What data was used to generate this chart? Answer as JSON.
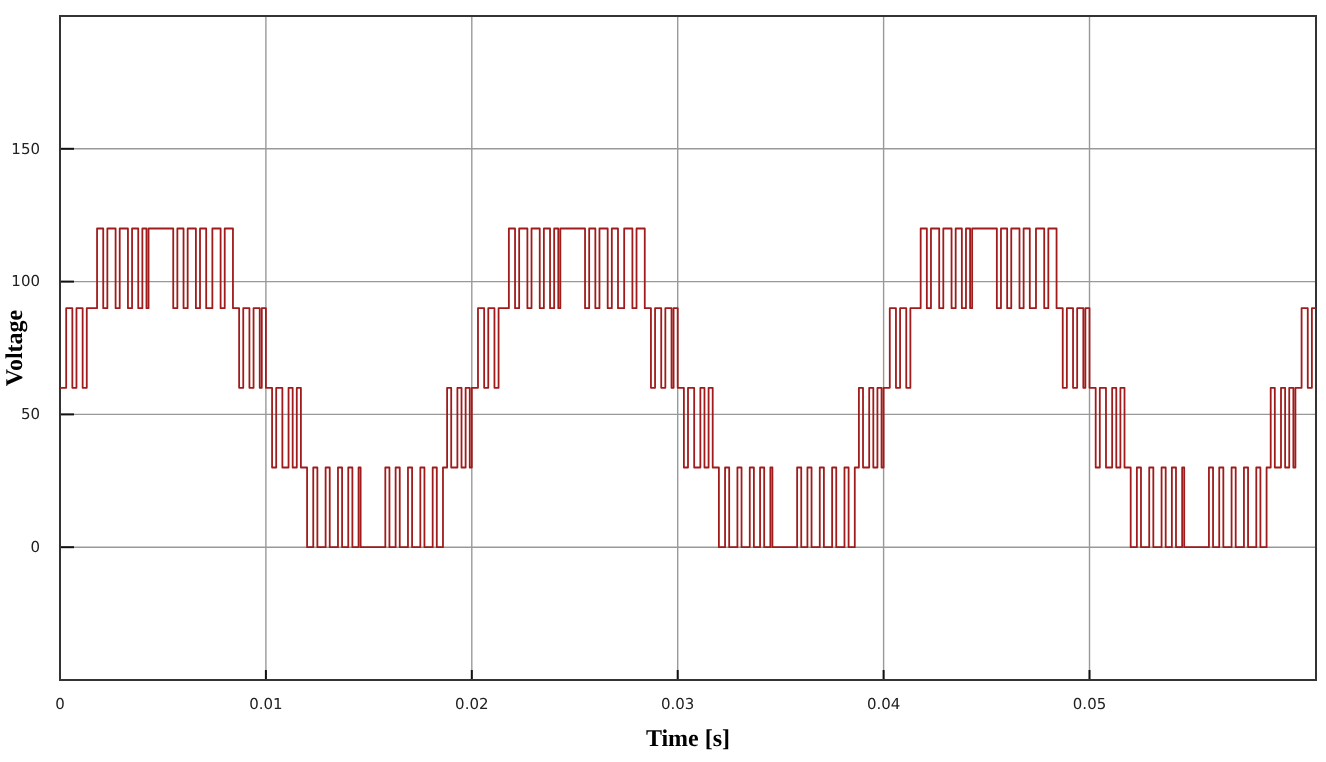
{
  "chart_data": {
    "type": "step",
    "xlabel": "Time [s]",
    "ylabel": "Voltage",
    "xlim": [
      0,
      0.061
    ],
    "xticks": [
      0,
      0.01,
      0.02,
      0.03,
      0.04,
      0.05
    ],
    "ylim": [
      -50,
      200
    ],
    "yticks": [
      0,
      50,
      100,
      150
    ],
    "grid": true,
    "marker": "none",
    "line_style": "solid",
    "series": [
      {
        "color": "#a01c1c",
        "x": [
          0,
          0.0003,
          0.0006,
          0.0008,
          0.0011,
          0.0013,
          0.0018,
          0.0021,
          0.0023,
          0.0027,
          0.0029,
          0.0033,
          0.0035,
          0.0038,
          0.004,
          0.0042,
          0.0043,
          0.0055,
          0.0057,
          0.006,
          0.0062,
          0.0066,
          0.0068,
          0.0071,
          0.0074,
          0.0078,
          0.008,
          0.0084,
          0.0087,
          0.0089,
          0.0092,
          0.0094,
          0.0097,
          0.0098,
          0.01,
          0.0103,
          0.0105,
          0.0108,
          0.0111,
          0.0113,
          0.0115,
          0.0117,
          0.012,
          0.0123,
          0.0125,
          0.0129,
          0.0131,
          0.0135,
          0.0137,
          0.014,
          0.0142,
          0.0145,
          0.0146,
          0.0158,
          0.016,
          0.0163,
          0.0165,
          0.0169,
          0.0171,
          0.0175,
          0.0177,
          0.0181,
          0.0183,
          0.0186,
          0.0188,
          0.019,
          0.0193,
          0.0195,
          0.0197,
          0.0199,
          0.02,
          0.0203,
          0.0206,
          0.0208,
          0.0211,
          0.0213,
          0.0218,
          0.0221,
          0.0223,
          0.0227,
          0.0229,
          0.0233,
          0.0235,
          0.0238,
          0.024,
          0.0242,
          0.0243,
          0.0255,
          0.0257,
          0.026,
          0.0262,
          0.0266,
          0.0268,
          0.0271,
          0.0274,
          0.0278,
          0.028,
          0.0284,
          0.0287,
          0.0289,
          0.0292,
          0.0294,
          0.0297,
          0.0298,
          0.03,
          0.0303,
          0.0305,
          0.0308,
          0.0311,
          0.0313,
          0.0315,
          0.0317,
          0.032,
          0.0323,
          0.0325,
          0.0329,
          0.0331,
          0.0335,
          0.0337,
          0.034,
          0.0342,
          0.0345,
          0.0346,
          0.0358,
          0.036,
          0.0363,
          0.0365,
          0.0369,
          0.0371,
          0.0375,
          0.0377,
          0.0381,
          0.0383,
          0.0386,
          0.0388,
          0.039,
          0.0393,
          0.0395,
          0.0397,
          0.0399,
          0.04,
          0.0403,
          0.0406,
          0.0408,
          0.0411,
          0.0413,
          0.0418,
          0.0421,
          0.0423,
          0.0427,
          0.0429,
          0.0433,
          0.0435,
          0.0438,
          0.044,
          0.0442,
          0.0443,
          0.0455,
          0.0457,
          0.046,
          0.0462,
          0.0466,
          0.0468,
          0.0471,
          0.0474,
          0.0478,
          0.048,
          0.0484,
          0.0487,
          0.0489,
          0.0492,
          0.0494,
          0.0497,
          0.0498,
          0.05,
          0.0503,
          0.0505,
          0.0508,
          0.0511,
          0.0513,
          0.0515,
          0.0517,
          0.052,
          0.0523,
          0.0525,
          0.0529,
          0.0531,
          0.0535,
          0.0537,
          0.054,
          0.0542,
          0.0545,
          0.0546,
          0.0558,
          0.056,
          0.0563,
          0.0565,
          0.0569,
          0.0571,
          0.0575,
          0.0577,
          0.0581,
          0.0583,
          0.0586,
          0.0588,
          0.059,
          0.0593,
          0.0595,
          0.0597,
          0.0599,
          0.06,
          0.0603,
          0.0606,
          0.0608,
          0.061
        ],
        "values": [
          60,
          90,
          60,
          90,
          60,
          90,
          120,
          90,
          120,
          90,
          120,
          90,
          120,
          90,
          120,
          90,
          120,
          90,
          120,
          90,
          120,
          90,
          120,
          90,
          120,
          90,
          120,
          90,
          60,
          90,
          60,
          90,
          60,
          90,
          60,
          30,
          60,
          30,
          60,
          30,
          60,
          30,
          0,
          30,
          0,
          30,
          0,
          30,
          0,
          30,
          0,
          30,
          0,
          30,
          0,
          30,
          0,
          30,
          0,
          30,
          0,
          30,
          0,
          30,
          60,
          30,
          60,
          30,
          60,
          30,
          60,
          90,
          60,
          90,
          60,
          90,
          120,
          90,
          120,
          90,
          120,
          90,
          120,
          90,
          120,
          90,
          120,
          90,
          120,
          90,
          120,
          90,
          120,
          90,
          120,
          90,
          120,
          90,
          60,
          90,
          60,
          90,
          60,
          90,
          60,
          30,
          60,
          30,
          60,
          30,
          60,
          30,
          0,
          30,
          0,
          30,
          0,
          30,
          0,
          30,
          0,
          30,
          0,
          30,
          0,
          30,
          0,
          30,
          0,
          30,
          0,
          30,
          0,
          30,
          60,
          30,
          60,
          30,
          60,
          30,
          60,
          90,
          60,
          90,
          60,
          90,
          120,
          90,
          120,
          90,
          120,
          90,
          120,
          90,
          120,
          90,
          120,
          90,
          120,
          90,
          120,
          90,
          120,
          90,
          120,
          90,
          120,
          90,
          60,
          90,
          60,
          90,
          60,
          90,
          60,
          30,
          60,
          30,
          60,
          30,
          60,
          30,
          0,
          30,
          0,
          30,
          0,
          30,
          0,
          30,
          0,
          30,
          0,
          30,
          0,
          30,
          0,
          30,
          0,
          30,
          0,
          30,
          0,
          30,
          60,
          30,
          60,
          30,
          60,
          30,
          60,
          90,
          60,
          90,
          90
        ]
      }
    ]
  }
}
